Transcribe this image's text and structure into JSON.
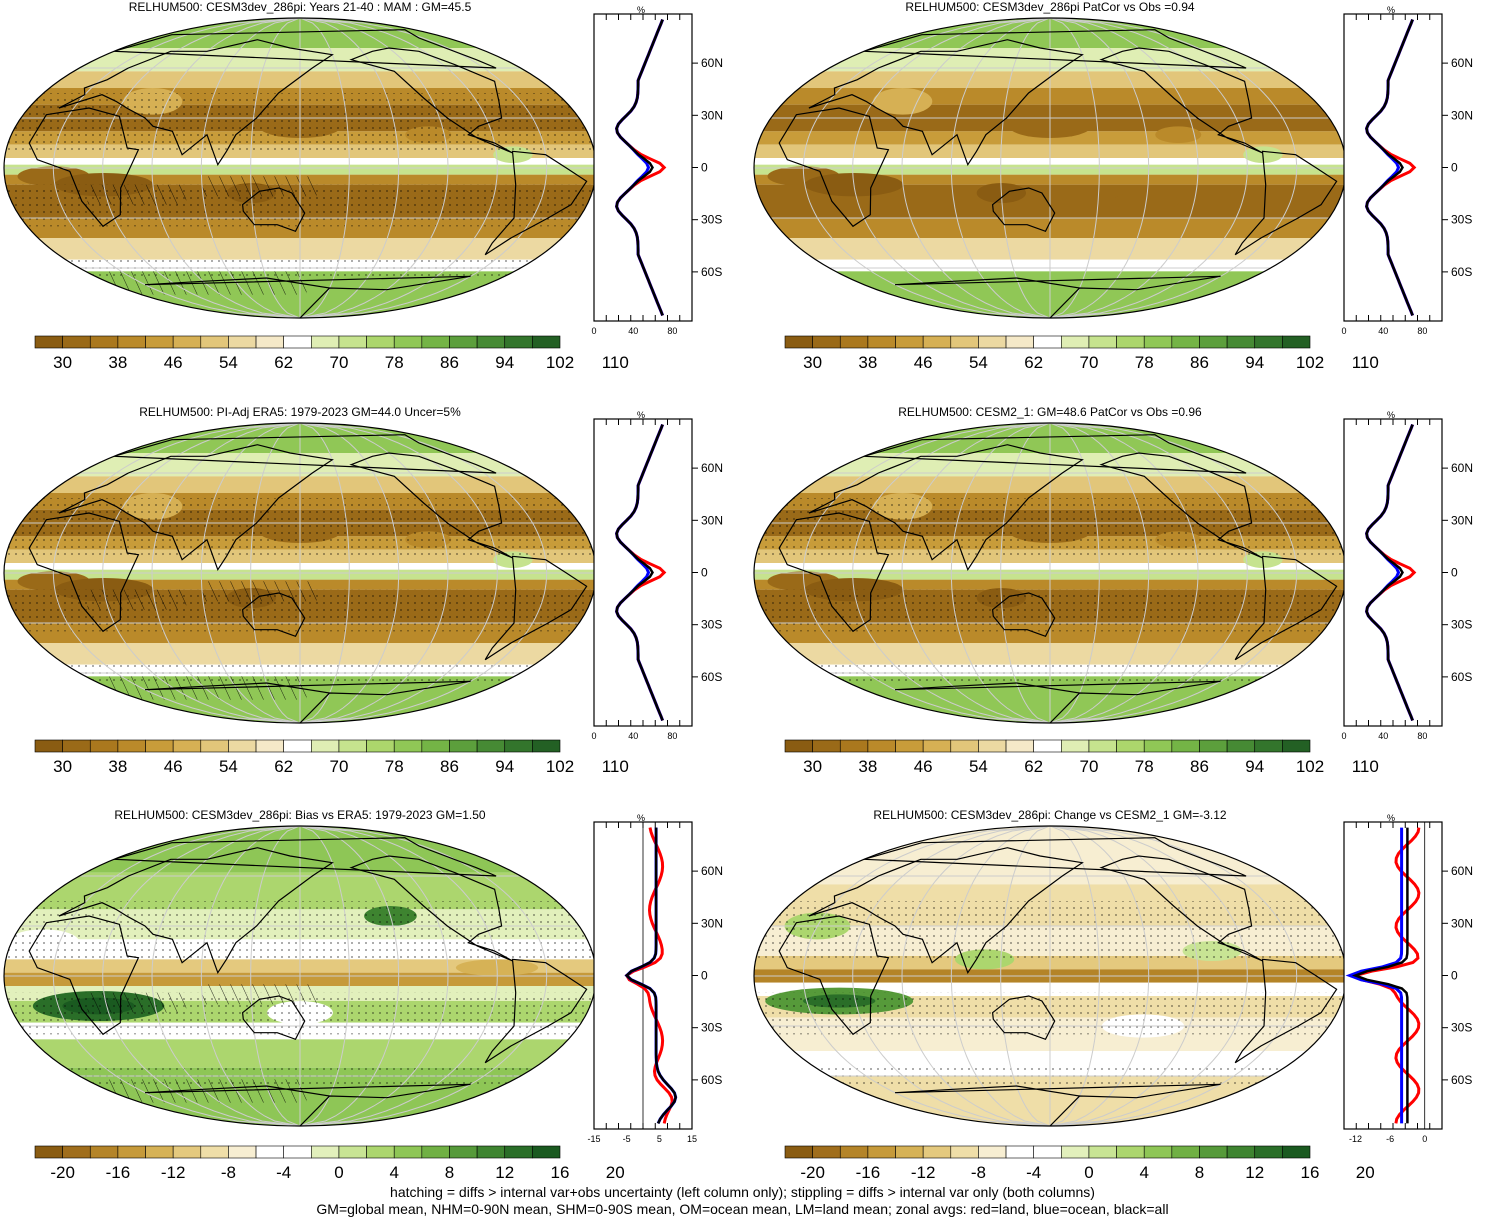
{
  "colors": {
    "levels_abs": [
      "#8a5c12",
      "#9a6a18",
      "#aa781e",
      "#ba8a2a",
      "#c89c3a",
      "#d6b054",
      "#e2c67a",
      "#ecd9a2",
      "#f5e9c8",
      "#ffffff",
      "#dfeeb4",
      "#c6e38e",
      "#acd66c",
      "#90c756",
      "#74b446",
      "#5c9f3c",
      "#468a34",
      "#33752c",
      "#236024"
    ],
    "levels_diff": [
      "#8a5c12",
      "#a06e1c",
      "#b48428",
      "#c69a3a",
      "#d6b256",
      "#e4c97e",
      "#efdea8",
      "#f7eed2",
      "#ffffff",
      "#ffffff",
      "#e2f0bc",
      "#c8e494",
      "#acd66e",
      "#8ec656",
      "#70b044",
      "#569a3a",
      "#3e8430",
      "#2a6e28",
      "#1a5a20"
    ],
    "land_gray": "#c8c8c8",
    "coast": "#000000",
    "grid": "#cccccc",
    "zonal_land": "#ff0000",
    "zonal_ocean": "#0000ff",
    "zonal_all": "#000000"
  },
  "panels": [
    {
      "id": "p1",
      "title": "RELHUM500: CESM3dev_286pi: Years 21-40 : MAM : GM=45.5",
      "field": "abs",
      "colorbar": {
        "type": "abs",
        "labels": [
          "30",
          "38",
          "46",
          "54",
          "62",
          "70",
          "78",
          "86",
          "94",
          "102",
          "110"
        ]
      },
      "zonal": {
        "unit": "%",
        "lat_labels": [
          "60N",
          "30N",
          "0",
          "30S",
          "60S"
        ],
        "x_labels": [
          "0",
          "40",
          "80"
        ],
        "xmin": 0,
        "xmax": 100
      },
      "hatch": true,
      "stipple": true
    },
    {
      "id": "p2",
      "title": "RELHUM500: CESM3dev_286pi PatCor vs Obs =0.94",
      "field": "abs",
      "colorbar": {
        "type": "abs",
        "labels": [
          "30",
          "38",
          "46",
          "54",
          "62",
          "70",
          "78",
          "86",
          "94",
          "102",
          "110"
        ]
      },
      "zonal": {
        "unit": "%",
        "lat_labels": [
          "60N",
          "30N",
          "0",
          "30S",
          "60S"
        ],
        "x_labels": [
          "0",
          "40",
          "80"
        ],
        "xmin": 0,
        "xmax": 100
      },
      "hatch": false,
      "stipple": false
    },
    {
      "id": "p3",
      "title": "RELHUM500: PI-Adj ERA5: 1979-2023 GM=44.0 Uncer=5%",
      "field": "abs",
      "colorbar": {
        "type": "abs",
        "labels": [
          "30",
          "38",
          "46",
          "54",
          "62",
          "70",
          "78",
          "86",
          "94",
          "102",
          "110"
        ]
      },
      "zonal": {
        "unit": "%",
        "lat_labels": [
          "60N",
          "30N",
          "0",
          "30S",
          "60S"
        ],
        "x_labels": [
          "0",
          "40",
          "80"
        ],
        "xmin": 0,
        "xmax": 100
      },
      "hatch": true,
      "stipple": true
    },
    {
      "id": "p4",
      "title": "RELHUM500: CESM2_1: GM=48.6 PatCor vs Obs =0.96",
      "field": "abs",
      "colorbar": {
        "type": "abs",
        "labels": [
          "30",
          "38",
          "46",
          "54",
          "62",
          "70",
          "78",
          "86",
          "94",
          "102",
          "110"
        ]
      },
      "zonal": {
        "unit": "%",
        "lat_labels": [
          "60N",
          "30N",
          "0",
          "30S",
          "60S"
        ],
        "x_labels": [
          "0",
          "40",
          "80"
        ],
        "xmin": 0,
        "xmax": 100
      },
      "hatch": false,
      "stipple": true
    },
    {
      "id": "p5",
      "title": "RELHUM500: CESM3dev_286pi: Bias vs ERA5: 1979-2023 GM=1.50",
      "field": "bias",
      "colorbar": {
        "type": "diff",
        "labels": [
          "-20",
          "-16",
          "-12",
          "-8",
          "-4",
          "0",
          "4",
          "8",
          "12",
          "16",
          "20"
        ]
      },
      "zonal": {
        "unit": "%",
        "lat_labels": [
          "60N",
          "30N",
          "0",
          "30S",
          "60S"
        ],
        "x_labels": [
          "-15",
          "-5",
          "5",
          "15"
        ],
        "xmin": -15,
        "xmax": 15
      },
      "hatch": true,
      "stipple": true
    },
    {
      "id": "p6",
      "title": "RELHUM500: CESM3dev_286pi: Change vs CESM2_1 GM=-3.12",
      "field": "change",
      "colorbar": {
        "type": "diff",
        "labels": [
          "-20",
          "-16",
          "-12",
          "-8",
          "-4",
          "0",
          "4",
          "8",
          "12",
          "16",
          "20"
        ]
      },
      "zonal": {
        "unit": "%",
        "lat_labels": [
          "60N",
          "30N",
          "0",
          "30S",
          "60S"
        ],
        "x_labels": [
          "-12",
          "-6",
          "0"
        ],
        "xmin": -14,
        "xmax": 3
      },
      "hatch": false,
      "stipple": true
    }
  ],
  "footer": {
    "line1": "hatching = diffs > internal var+obs uncertainty (left column only); stippling = diffs > internal var only (both columns)",
    "line2": "GM=global mean, NHM=0-90N mean, SHM=0-90S mean, OM=ocean mean, LM=land mean; zonal avgs: red=land, blue=ocean, black=all"
  }
}
